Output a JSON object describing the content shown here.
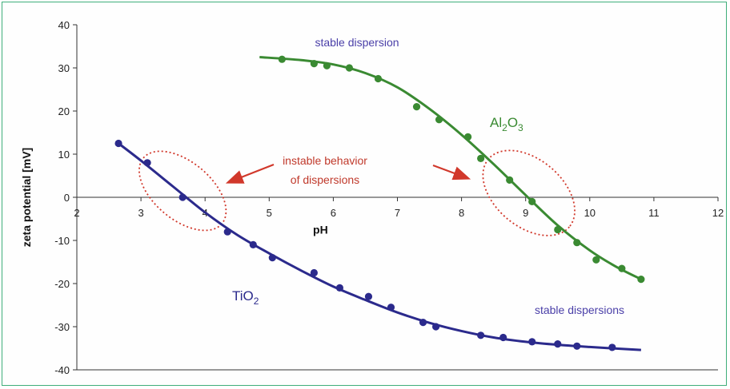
{
  "chart_data": {
    "type": "scatter",
    "xlabel": "pH",
    "ylabel": "zeta potential [mV]",
    "xlim": [
      2,
      12
    ],
    "ylim": [
      -40,
      40
    ],
    "x_ticks": [
      2,
      3,
      4,
      5,
      6,
      7,
      8,
      9,
      10,
      11,
      12
    ],
    "y_ticks": [
      40,
      30,
      20,
      10,
      0,
      -10,
      -20,
      -30,
      -40
    ],
    "grid": false,
    "series": [
      {
        "name": "TiO2",
        "label_main": "TiO",
        "label_sub": "2",
        "color": "#2b2a8c",
        "points": [
          [
            2.65,
            12.5
          ],
          [
            3.1,
            8
          ],
          [
            3.65,
            0
          ],
          [
            4.35,
            -8
          ],
          [
            4.75,
            -11
          ],
          [
            5.05,
            -14
          ],
          [
            5.7,
            -17.5
          ],
          [
            6.1,
            -21
          ],
          [
            6.55,
            -23
          ],
          [
            6.9,
            -25.5
          ],
          [
            7.4,
            -29
          ],
          [
            7.6,
            -30
          ],
          [
            8.3,
            -32
          ],
          [
            8.65,
            -32.5
          ],
          [
            9.1,
            -33.5
          ],
          [
            9.5,
            -34
          ],
          [
            9.8,
            -34.5
          ],
          [
            10.35,
            -34.8
          ]
        ],
        "curve": [
          [
            2.65,
            12.5
          ],
          [
            3.0,
            8.5
          ],
          [
            3.5,
            2.5
          ],
          [
            4.0,
            -3.5
          ],
          [
            4.5,
            -8.7
          ],
          [
            5.0,
            -13
          ],
          [
            5.5,
            -17
          ],
          [
            6.0,
            -20.7
          ],
          [
            6.5,
            -23.8
          ],
          [
            7.0,
            -26.7
          ],
          [
            7.5,
            -29.1
          ],
          [
            8.0,
            -31
          ],
          [
            8.5,
            -32.5
          ],
          [
            9.0,
            -33.5
          ],
          [
            9.5,
            -34.2
          ],
          [
            10.0,
            -34.7
          ],
          [
            10.8,
            -35.4
          ]
        ]
      },
      {
        "name": "Al2O3",
        "label_main": [
          "Al",
          "O"
        ],
        "label_sub": [
          "2",
          "3"
        ],
        "color": "#3a8a32",
        "points": [
          [
            5.2,
            32
          ],
          [
            5.7,
            31
          ],
          [
            5.9,
            30.5
          ],
          [
            6.25,
            30
          ],
          [
            6.7,
            27.5
          ],
          [
            7.3,
            21
          ],
          [
            7.65,
            18
          ],
          [
            8.1,
            14
          ],
          [
            8.3,
            9
          ],
          [
            8.75,
            4
          ],
          [
            9.1,
            -1
          ],
          [
            9.5,
            -7.5
          ],
          [
            9.8,
            -10.5
          ],
          [
            10.1,
            -14.5
          ],
          [
            10.5,
            -16.5
          ],
          [
            10.8,
            -19
          ]
        ],
        "curve": [
          [
            4.85,
            32.5
          ],
          [
            5.5,
            31.8
          ],
          [
            6.0,
            30.8
          ],
          [
            6.5,
            28.8
          ],
          [
            7.0,
            25.5
          ],
          [
            7.5,
            20.5
          ],
          [
            8.0,
            14.5
          ],
          [
            8.5,
            7.7
          ],
          [
            9.0,
            0.5
          ],
          [
            9.5,
            -6.5
          ],
          [
            10.0,
            -12.3
          ],
          [
            10.4,
            -16
          ],
          [
            10.8,
            -19
          ]
        ]
      }
    ],
    "annotations": [
      {
        "text": "stable dispersion",
        "color": "#4a3fa8"
      },
      {
        "text": "stable dispersions",
        "color": "#4a3fa8"
      },
      {
        "text_lines": [
          "instable behavior",
          "of dispersions"
        ],
        "color": "#c0392b"
      }
    ]
  }
}
